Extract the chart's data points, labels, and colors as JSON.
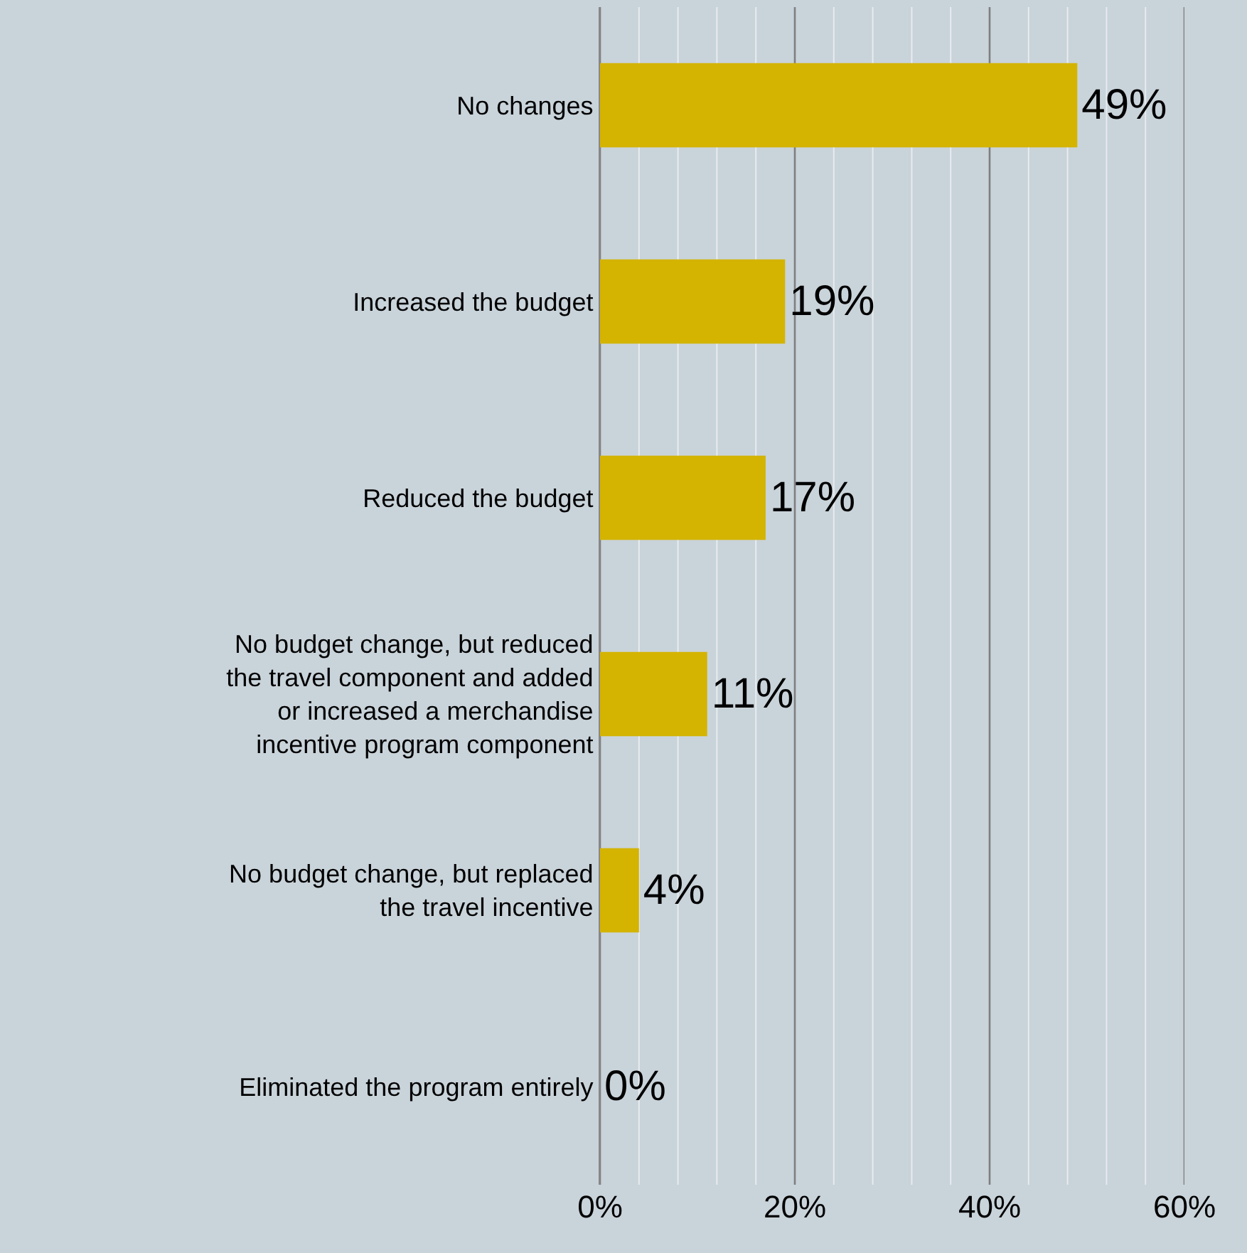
{
  "chart_data": {
    "type": "bar",
    "orientation": "horizontal",
    "categories": [
      "No changes",
      "Increased the budget",
      "Reduced the budget",
      "No budget change, but reduced the travel component and added or increased a merchandise incentive program component",
      "No budget change, but replaced the travel incentive",
      "Eliminated the program entirely"
    ],
    "values": [
      49,
      19,
      17,
      11,
      4,
      0
    ],
    "value_labels": [
      "49%",
      "19%",
      "17%",
      "11%",
      "4%",
      "0%"
    ],
    "color": "#d4b400",
    "xlim": [
      0,
      60
    ],
    "xticks": [
      {
        "value": 0,
        "label": "0%"
      },
      {
        "value": 4,
        "label": null
      },
      {
        "value": 8,
        "label": null
      },
      {
        "value": 12,
        "label": null
      },
      {
        "value": 16,
        "label": null
      },
      {
        "value": 20,
        "label": "20%"
      },
      {
        "value": 24,
        "label": null
      },
      {
        "value": 28,
        "label": null
      },
      {
        "value": 32,
        "label": null
      },
      {
        "value": 36,
        "label": null
      },
      {
        "value": 40,
        "label": "40%"
      },
      {
        "value": 44,
        "label": null
      },
      {
        "value": 48,
        "label": null
      },
      {
        "value": 52,
        "label": null
      },
      {
        "value": 56,
        "label": null
      },
      {
        "value": 60,
        "label": "60%"
      }
    ],
    "grid": "x",
    "legend": false
  }
}
